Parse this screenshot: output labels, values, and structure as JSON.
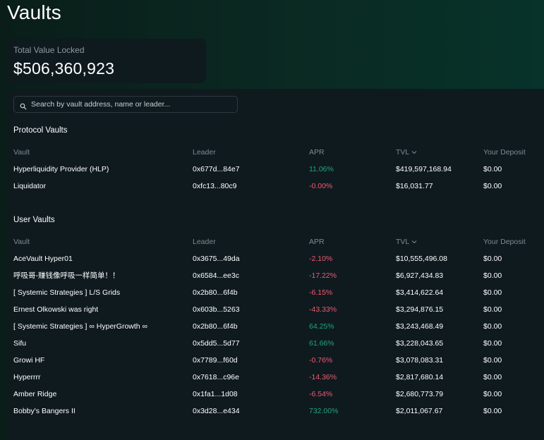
{
  "page": {
    "title": "Vaults"
  },
  "tvl": {
    "label": "Total Value Locked",
    "value": "$506,360,923"
  },
  "search": {
    "placeholder": "Search by vault address, name or leader..."
  },
  "columns": {
    "vault": "Vault",
    "leader": "Leader",
    "apr": "APR",
    "tvl": "TVL",
    "deposit": "Your Deposit"
  },
  "colors": {
    "positive": "#1fa67a",
    "negative": "#ed5a70",
    "link": "#56a8ff"
  },
  "protocol": {
    "title": "Protocol Vaults",
    "rows": [
      {
        "vault": "Hyperliquidity Provider (HLP)",
        "leader": "0x677d...84e7",
        "apr": "11.06%",
        "tvl": "$419,597,168.94",
        "deposit": "$0.00"
      },
      {
        "vault": "Liquidator",
        "leader": "0xfc13...80c9",
        "apr": "-0.00%",
        "tvl": "$16,031.77",
        "deposit": "$0.00"
      }
    ]
  },
  "user": {
    "title": "User Vaults",
    "rows": [
      {
        "vault": "AceVault Hyper01",
        "leader": "0x3675...49da",
        "apr": "-2.10%",
        "tvl": "$10,555,496.08",
        "deposit": "$0.00"
      },
      {
        "vault": "呼吸哥-赚钱像呼吸一样简单！！",
        "leader": "0x6584...ee3c",
        "apr": "-17.22%",
        "tvl": "$6,927,434.83",
        "deposit": "$0.00"
      },
      {
        "vault": "[ Systemic Strategies ] L/S Grids",
        "leader": "0x2b80...6f4b",
        "apr": "-6.15%",
        "tvl": "$3,414,622.64",
        "deposit": "$0.00"
      },
      {
        "vault": "Ernest Olkowski was right",
        "leader": "0x603b...5263",
        "apr": "-43.33%",
        "tvl": "$3,294,876.15",
        "deposit": "$0.00"
      },
      {
        "vault": "[ Systemic Strategies ] ∞ HyperGrowth ∞",
        "leader": "0x2b80...6f4b",
        "apr": "64.25%",
        "tvl": "$3,243,468.49",
        "deposit": "$0.00"
      },
      {
        "vault": "Sifu",
        "leader": "0x5dd5...5d77",
        "apr": "61.66%",
        "tvl": "$3,228,043.65",
        "deposit": "$0.00"
      },
      {
        "vault": "Growi HF",
        "leader": "0x7789...f60d",
        "apr": "-0.76%",
        "tvl": "$3,078,083.31",
        "deposit": "$0.00"
      },
      {
        "vault": "Hyperrrr",
        "leader": "0x7618...c96e",
        "apr": "-14.36%",
        "tvl": "$2,817,680.14",
        "deposit": "$0.00"
      },
      {
        "vault": "Amber Ridge",
        "leader": "0x1fa1...1d08",
        "apr": "-6.54%",
        "tvl": "$2,680,773.79",
        "deposit": "$0.00"
      },
      {
        "vault": "Bobby's Bangers II",
        "leader": "0x3d28...e434",
        "apr": "732.00%",
        "tvl": "$2,011,067.67",
        "deposit": "$0.00"
      }
    ]
  }
}
